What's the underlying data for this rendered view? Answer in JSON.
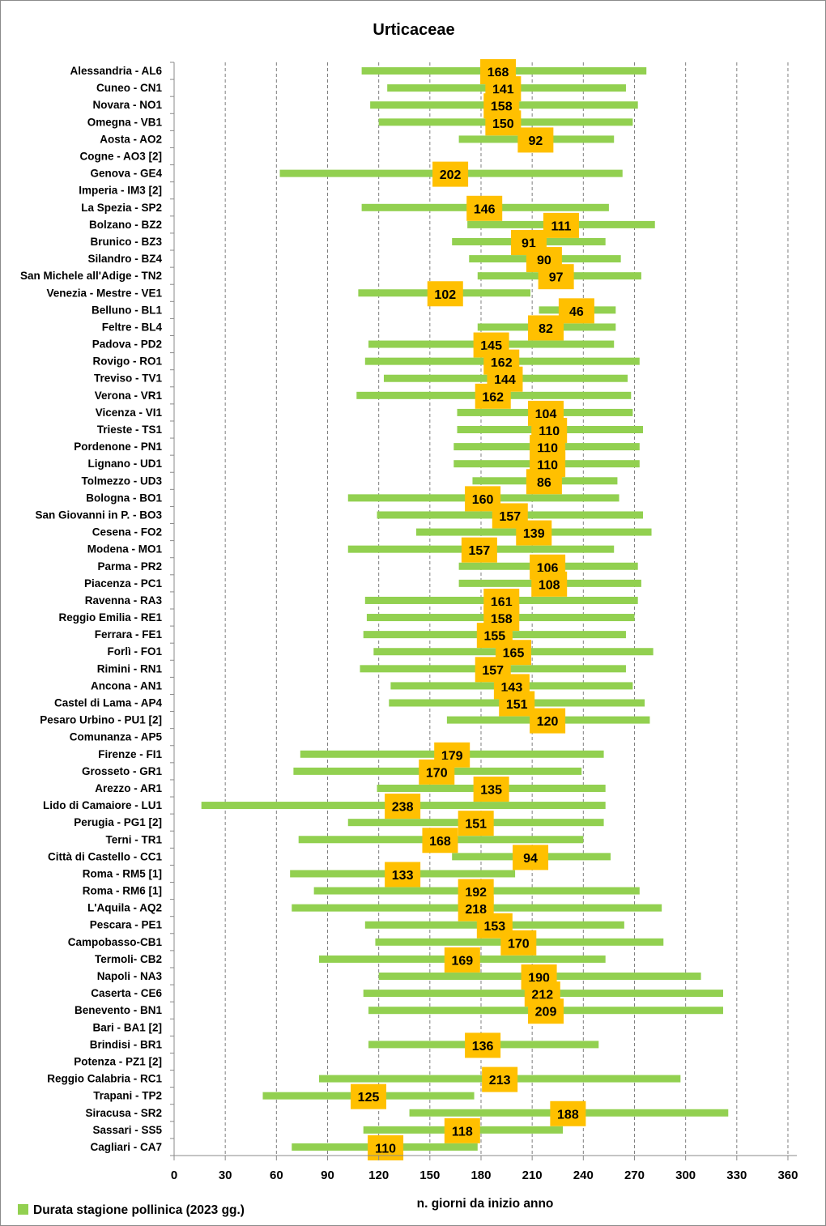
{
  "chart_data": {
    "type": "bar",
    "orientation": "horizontal-floating",
    "title": "Urticaceae",
    "xlabel": "n. giorni da inizio anno",
    "ylabel": "",
    "xlim": [
      0,
      365
    ],
    "xticks": [
      0,
      30,
      60,
      90,
      120,
      150,
      180,
      210,
      240,
      270,
      300,
      330,
      360
    ],
    "grid": "vertical dashed",
    "legend": {
      "position": "bottom-left",
      "label": "Durata stagione pollinica (2023 gg.)"
    },
    "colors": {
      "bar": "#92d050",
      "label_box": "#ffc000",
      "grid": "#7f7f7f",
      "axis": "#8a8a8a"
    },
    "series": [
      {
        "name": "Durata stagione pollinica (2023 gg.)",
        "rows": [
          {
            "station": "Alessandria - AL6",
            "start": 110,
            "end": 277,
            "duration": "168",
            "label_at": 190
          },
          {
            "station": "Cuneo - CN1",
            "start": 125,
            "end": 265,
            "duration": "141",
            "label_at": 193
          },
          {
            "station": "Novara - NO1",
            "start": 115,
            "end": 272,
            "duration": "158",
            "label_at": 192
          },
          {
            "station": "Omegna - VB1",
            "start": 120,
            "end": 269,
            "duration": "150",
            "label_at": 193
          },
          {
            "station": "Aosta - AO2",
            "start": 167,
            "end": 258,
            "duration": "92",
            "label_at": 212
          },
          {
            "station": "Cogne - AO3 [2]",
            "start": null,
            "end": null,
            "duration": "",
            "label_at": null
          },
          {
            "station": "Genova - GE4",
            "start": 62,
            "end": 263,
            "duration": "202",
            "label_at": 162
          },
          {
            "station": "Imperia - IM3 [2]",
            "start": null,
            "end": null,
            "duration": "",
            "label_at": null
          },
          {
            "station": "La Spezia - SP2",
            "start": 110,
            "end": 255,
            "duration": "146",
            "label_at": 182
          },
          {
            "station": "Bolzano - BZ2",
            "start": 172,
            "end": 282,
            "duration": "111",
            "label_at": 227
          },
          {
            "station": "Brunico - BZ3",
            "start": 163,
            "end": 253,
            "duration": "91",
            "label_at": 208
          },
          {
            "station": "Silandro - BZ4",
            "start": 173,
            "end": 262,
            "duration": "90",
            "label_at": 217
          },
          {
            "station": "San Michele all'Adige - TN2",
            "start": 178,
            "end": 274,
            "duration": "97",
            "label_at": 224
          },
          {
            "station": "Venezia - Mestre - VE1",
            "start": 108,
            "end": 209,
            "duration": "102",
            "label_at": 159
          },
          {
            "station": "Belluno - BL1",
            "start": 214,
            "end": 259,
            "duration": "46",
            "label_at": 236
          },
          {
            "station": "Feltre - BL4",
            "start": 178,
            "end": 259,
            "duration": "82",
            "label_at": 218
          },
          {
            "station": "Padova - PD2",
            "start": 114,
            "end": 258,
            "duration": "145",
            "label_at": 186
          },
          {
            "station": "Rovigo - RO1",
            "start": 112,
            "end": 273,
            "duration": "162",
            "label_at": 192
          },
          {
            "station": "Treviso - TV1",
            "start": 123,
            "end": 266,
            "duration": "144",
            "label_at": 194
          },
          {
            "station": "Verona - VR1",
            "start": 107,
            "end": 268,
            "duration": "162",
            "label_at": 187
          },
          {
            "station": "Vicenza - VI1",
            "start": 166,
            "end": 269,
            "duration": "104",
            "label_at": 218
          },
          {
            "station": "Trieste - TS1",
            "start": 166,
            "end": 275,
            "duration": "110",
            "label_at": 220
          },
          {
            "station": "Pordenone - PN1",
            "start": 164,
            "end": 273,
            "duration": "110",
            "label_at": 219
          },
          {
            "station": "Lignano - UD1",
            "start": 164,
            "end": 273,
            "duration": "110",
            "label_at": 219
          },
          {
            "station": "Tolmezzo - UD3",
            "start": 175,
            "end": 260,
            "duration": "86",
            "label_at": 217
          },
          {
            "station": "Bologna - BO1",
            "start": 102,
            "end": 261,
            "duration": "160",
            "label_at": 181
          },
          {
            "station": "San Giovanni in P. - BO3",
            "start": 119,
            "end": 275,
            "duration": "157",
            "label_at": 197
          },
          {
            "station": "Cesena - FO2",
            "start": 142,
            "end": 280,
            "duration": "139",
            "label_at": 211
          },
          {
            "station": "Modena - MO1",
            "start": 102,
            "end": 258,
            "duration": "157",
            "label_at": 179
          },
          {
            "station": "Parma - PR2",
            "start": 167,
            "end": 272,
            "duration": "106",
            "label_at": 219
          },
          {
            "station": "Piacenza - PC1",
            "start": 167,
            "end": 274,
            "duration": "108",
            "label_at": 220
          },
          {
            "station": "Ravenna - RA3",
            "start": 112,
            "end": 272,
            "duration": "161",
            "label_at": 192
          },
          {
            "station": "Reggio Emilia - RE1",
            "start": 113,
            "end": 270,
            "duration": "158",
            "label_at": 192
          },
          {
            "station": "Ferrara - FE1",
            "start": 111,
            "end": 265,
            "duration": "155",
            "label_at": 188
          },
          {
            "station": "Forlì - FO1",
            "start": 117,
            "end": 281,
            "duration": "165",
            "label_at": 199
          },
          {
            "station": "Rimini - RN1",
            "start": 109,
            "end": 265,
            "duration": "157",
            "label_at": 187
          },
          {
            "station": "Ancona - AN1",
            "start": 127,
            "end": 269,
            "duration": "143",
            "label_at": 198
          },
          {
            "station": "Castel di Lama - AP4",
            "start": 126,
            "end": 276,
            "duration": "151",
            "label_at": 201
          },
          {
            "station": "Pesaro Urbino - PU1 [2]",
            "start": 160,
            "end": 279,
            "duration": "120",
            "label_at": 219
          },
          {
            "station": "Comunanza - AP5",
            "start": null,
            "end": null,
            "duration": "",
            "label_at": null
          },
          {
            "station": "Firenze - FI1",
            "start": 74,
            "end": 252,
            "duration": "179",
            "label_at": 163
          },
          {
            "station": "Grosseto - GR1",
            "start": 70,
            "end": 239,
            "duration": "170",
            "label_at": 154
          },
          {
            "station": "Arezzo - AR1",
            "start": 119,
            "end": 253,
            "duration": "135",
            "label_at": 186
          },
          {
            "station": "Lido di Camaiore - LU1",
            "start": 16,
            "end": 253,
            "duration": "238",
            "label_at": 134
          },
          {
            "station": "Perugia - PG1 [2]",
            "start": 102,
            "end": 252,
            "duration": "151",
            "label_at": 177
          },
          {
            "station": "Terni - TR1",
            "start": 73,
            "end": 240,
            "duration": "168",
            "label_at": 156
          },
          {
            "station": "Città di Castello - CC1",
            "start": 163,
            "end": 256,
            "duration": "94",
            "label_at": 209
          },
          {
            "station": "Roma - RM5 [1]",
            "start": 68,
            "end": 200,
            "duration": "133",
            "label_at": 134
          },
          {
            "station": "Roma - RM6 [1]",
            "start": 82,
            "end": 273,
            "duration": "192",
            "label_at": 177
          },
          {
            "station": "L'Aquila - AQ2",
            "start": 69,
            "end": 286,
            "duration": "218",
            "label_at": 177
          },
          {
            "station": "Pescara - PE1",
            "start": 112,
            "end": 264,
            "duration": "153",
            "label_at": 188
          },
          {
            "station": "Campobasso-CB1",
            "start": 118,
            "end": 287,
            "duration": "170",
            "label_at": 202
          },
          {
            "station": "Termoli- CB2",
            "start": 85,
            "end": 253,
            "duration": "169",
            "label_at": 169
          },
          {
            "station": "Napoli - NA3",
            "start": 120,
            "end": 309,
            "duration": "190",
            "label_at": 214
          },
          {
            "station": "Caserta - CE6",
            "start": 111,
            "end": 322,
            "duration": "212",
            "label_at": 216
          },
          {
            "station": "Benevento  - BN1",
            "start": 114,
            "end": 322,
            "duration": "209",
            "label_at": 218
          },
          {
            "station": "Bari - BA1 [2]",
            "start": null,
            "end": null,
            "duration": "",
            "label_at": null
          },
          {
            "station": "Brindisi - BR1",
            "start": 114,
            "end": 249,
            "duration": "136",
            "label_at": 181
          },
          {
            "station": "Potenza - PZ1 [2]",
            "start": null,
            "end": null,
            "duration": "",
            "label_at": null
          },
          {
            "station": "Reggio Calabria - RC1",
            "start": 85,
            "end": 297,
            "duration": "213",
            "label_at": 191
          },
          {
            "station": "Trapani - TP2",
            "start": 52,
            "end": 176,
            "duration": "125",
            "label_at": 114
          },
          {
            "station": "Siracusa - SR2",
            "start": 138,
            "end": 325,
            "duration": "188",
            "label_at": 231
          },
          {
            "station": "Sassari - SS5",
            "start": 111,
            "end": 228,
            "duration": "118",
            "label_at": 169
          },
          {
            "station": "Cagliari - CA7",
            "start": 69,
            "end": 178,
            "duration": "110",
            "label_at": 124
          }
        ]
      }
    ]
  }
}
